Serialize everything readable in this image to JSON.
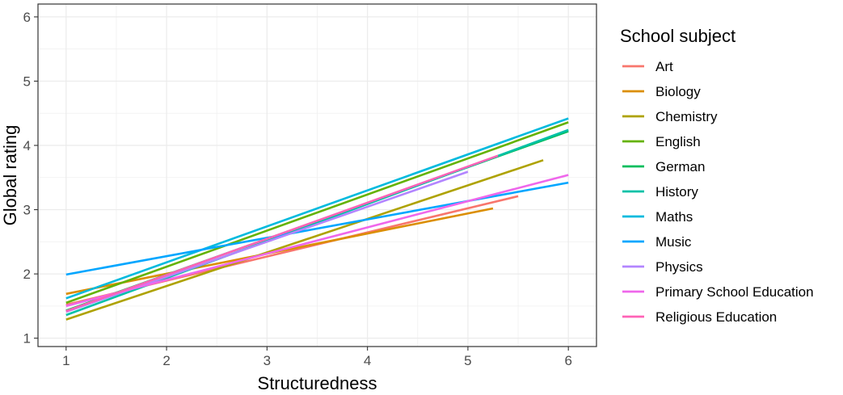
{
  "chart_data": {
    "type": "line",
    "xlabel": "Structuredness",
    "ylabel": "Global rating",
    "xlim": [
      0.72,
      6.28
    ],
    "ylim": [
      0.87,
      6.2
    ],
    "x_ticks": [
      1,
      2,
      3,
      4,
      5,
      6
    ],
    "y_ticks": [
      1,
      2,
      3,
      4,
      5,
      6
    ],
    "grid": true,
    "legend_title": "School subject",
    "legend_position": "right",
    "series": [
      {
        "name": "Art",
        "color": "#F8766D",
        "x": [
          1,
          5.5
        ],
        "y": [
          1.52,
          3.21
        ]
      },
      {
        "name": "Biology",
        "color": "#DB8E00",
        "x": [
          1,
          5.25
        ],
        "y": [
          1.69,
          3.02
        ]
      },
      {
        "name": "Chemistry",
        "color": "#AEA200",
        "x": [
          1,
          5.75
        ],
        "y": [
          1.29,
          3.77
        ]
      },
      {
        "name": "English",
        "color": "#64B200",
        "x": [
          1,
          6
        ],
        "y": [
          1.55,
          4.36
        ]
      },
      {
        "name": "German",
        "color": "#00BD5C",
        "x": [
          1,
          6
        ],
        "y": [
          1.43,
          4.22
        ]
      },
      {
        "name": "History",
        "color": "#00C1A7",
        "x": [
          1,
          6
        ],
        "y": [
          1.36,
          4.24
        ]
      },
      {
        "name": "Maths",
        "color": "#00BADE",
        "x": [
          1,
          6
        ],
        "y": [
          1.62,
          4.42
        ]
      },
      {
        "name": "Music",
        "color": "#00A6FF",
        "x": [
          1,
          6
        ],
        "y": [
          1.99,
          3.42
        ]
      },
      {
        "name": "Physics",
        "color": "#B385FF",
        "x": [
          1,
          5
        ],
        "y": [
          1.41,
          3.59
        ]
      },
      {
        "name": "Primary School Education",
        "color": "#EF67EB",
        "x": [
          1,
          6
        ],
        "y": [
          1.5,
          3.54
        ]
      },
      {
        "name": "Religious Education",
        "color": "#FF63B6",
        "x": [
          1,
          5.3
        ],
        "y": [
          1.42,
          3.84
        ]
      }
    ]
  }
}
